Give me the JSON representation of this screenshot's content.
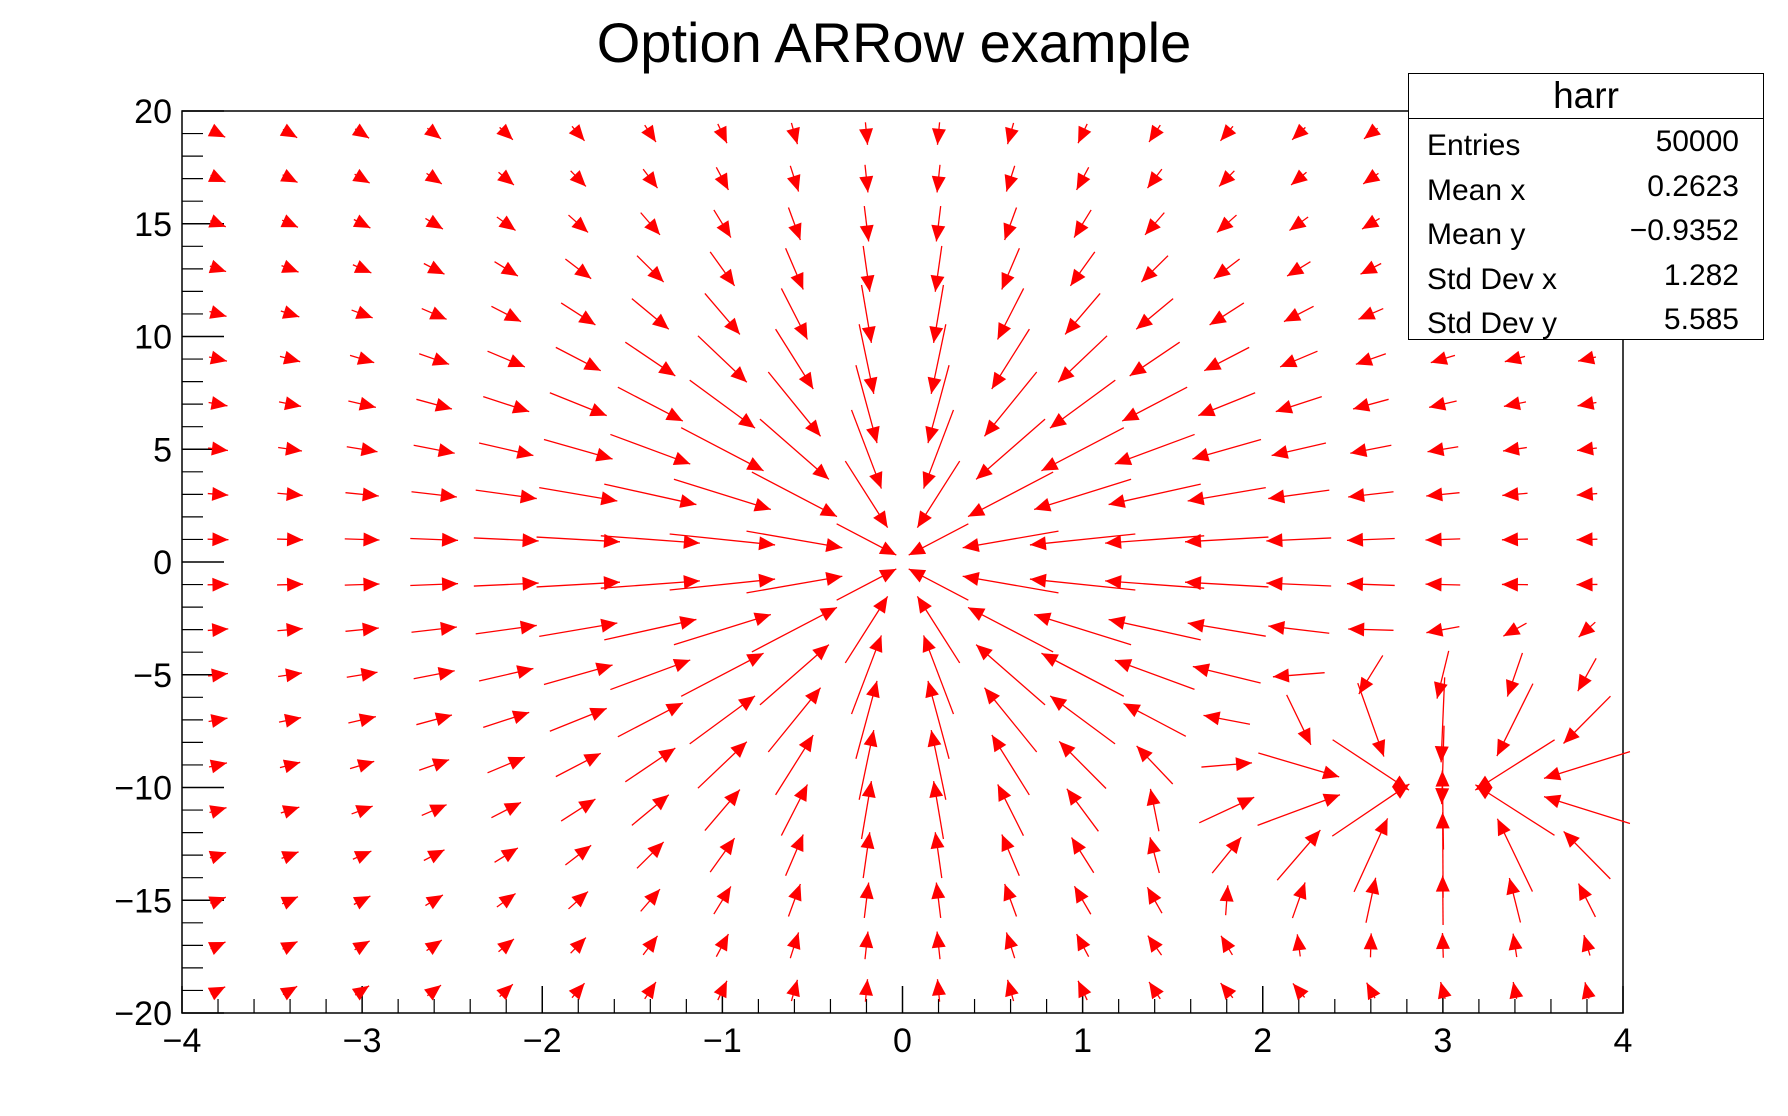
{
  "title": "Option ARRow example",
  "stats": {
    "name": "harr",
    "rows": [
      {
        "label": "Entries",
        "value": "50000"
      },
      {
        "label": "Mean x",
        "value": "0.2623"
      },
      {
        "label": "Mean y",
        "value": "−0.9352"
      },
      {
        "label": "Std Dev x",
        "value": "1.282"
      },
      {
        "label": "Std Dev y",
        "value": "5.585"
      }
    ]
  },
  "colors": {
    "arrow": "#ff0000",
    "axis": "#000000",
    "background": "#ffffff"
  },
  "chart_data": {
    "type": "vector-field",
    "title": "Option ARRow example",
    "xlim": [
      -4,
      4
    ],
    "ylim": [
      -20,
      20
    ],
    "x_ticks": [
      "−4",
      "−3",
      "−2",
      "−1",
      "0",
      "1",
      "2",
      "3",
      "4"
    ],
    "y_ticks": [
      "−20",
      "−15",
      "−10",
      "−5",
      "0",
      "5",
      "10",
      "15",
      "20"
    ],
    "grid": false,
    "legend": "top-right",
    "bins": {
      "nx": 20,
      "ny": 20
    },
    "field_description": "arrows point toward the density peaks at (0, 0) and (3, -10)",
    "sinks": [
      {
        "x": 0.0,
        "y": 0.0
      },
      {
        "x": 3.0,
        "y": -10.0
      }
    ]
  }
}
